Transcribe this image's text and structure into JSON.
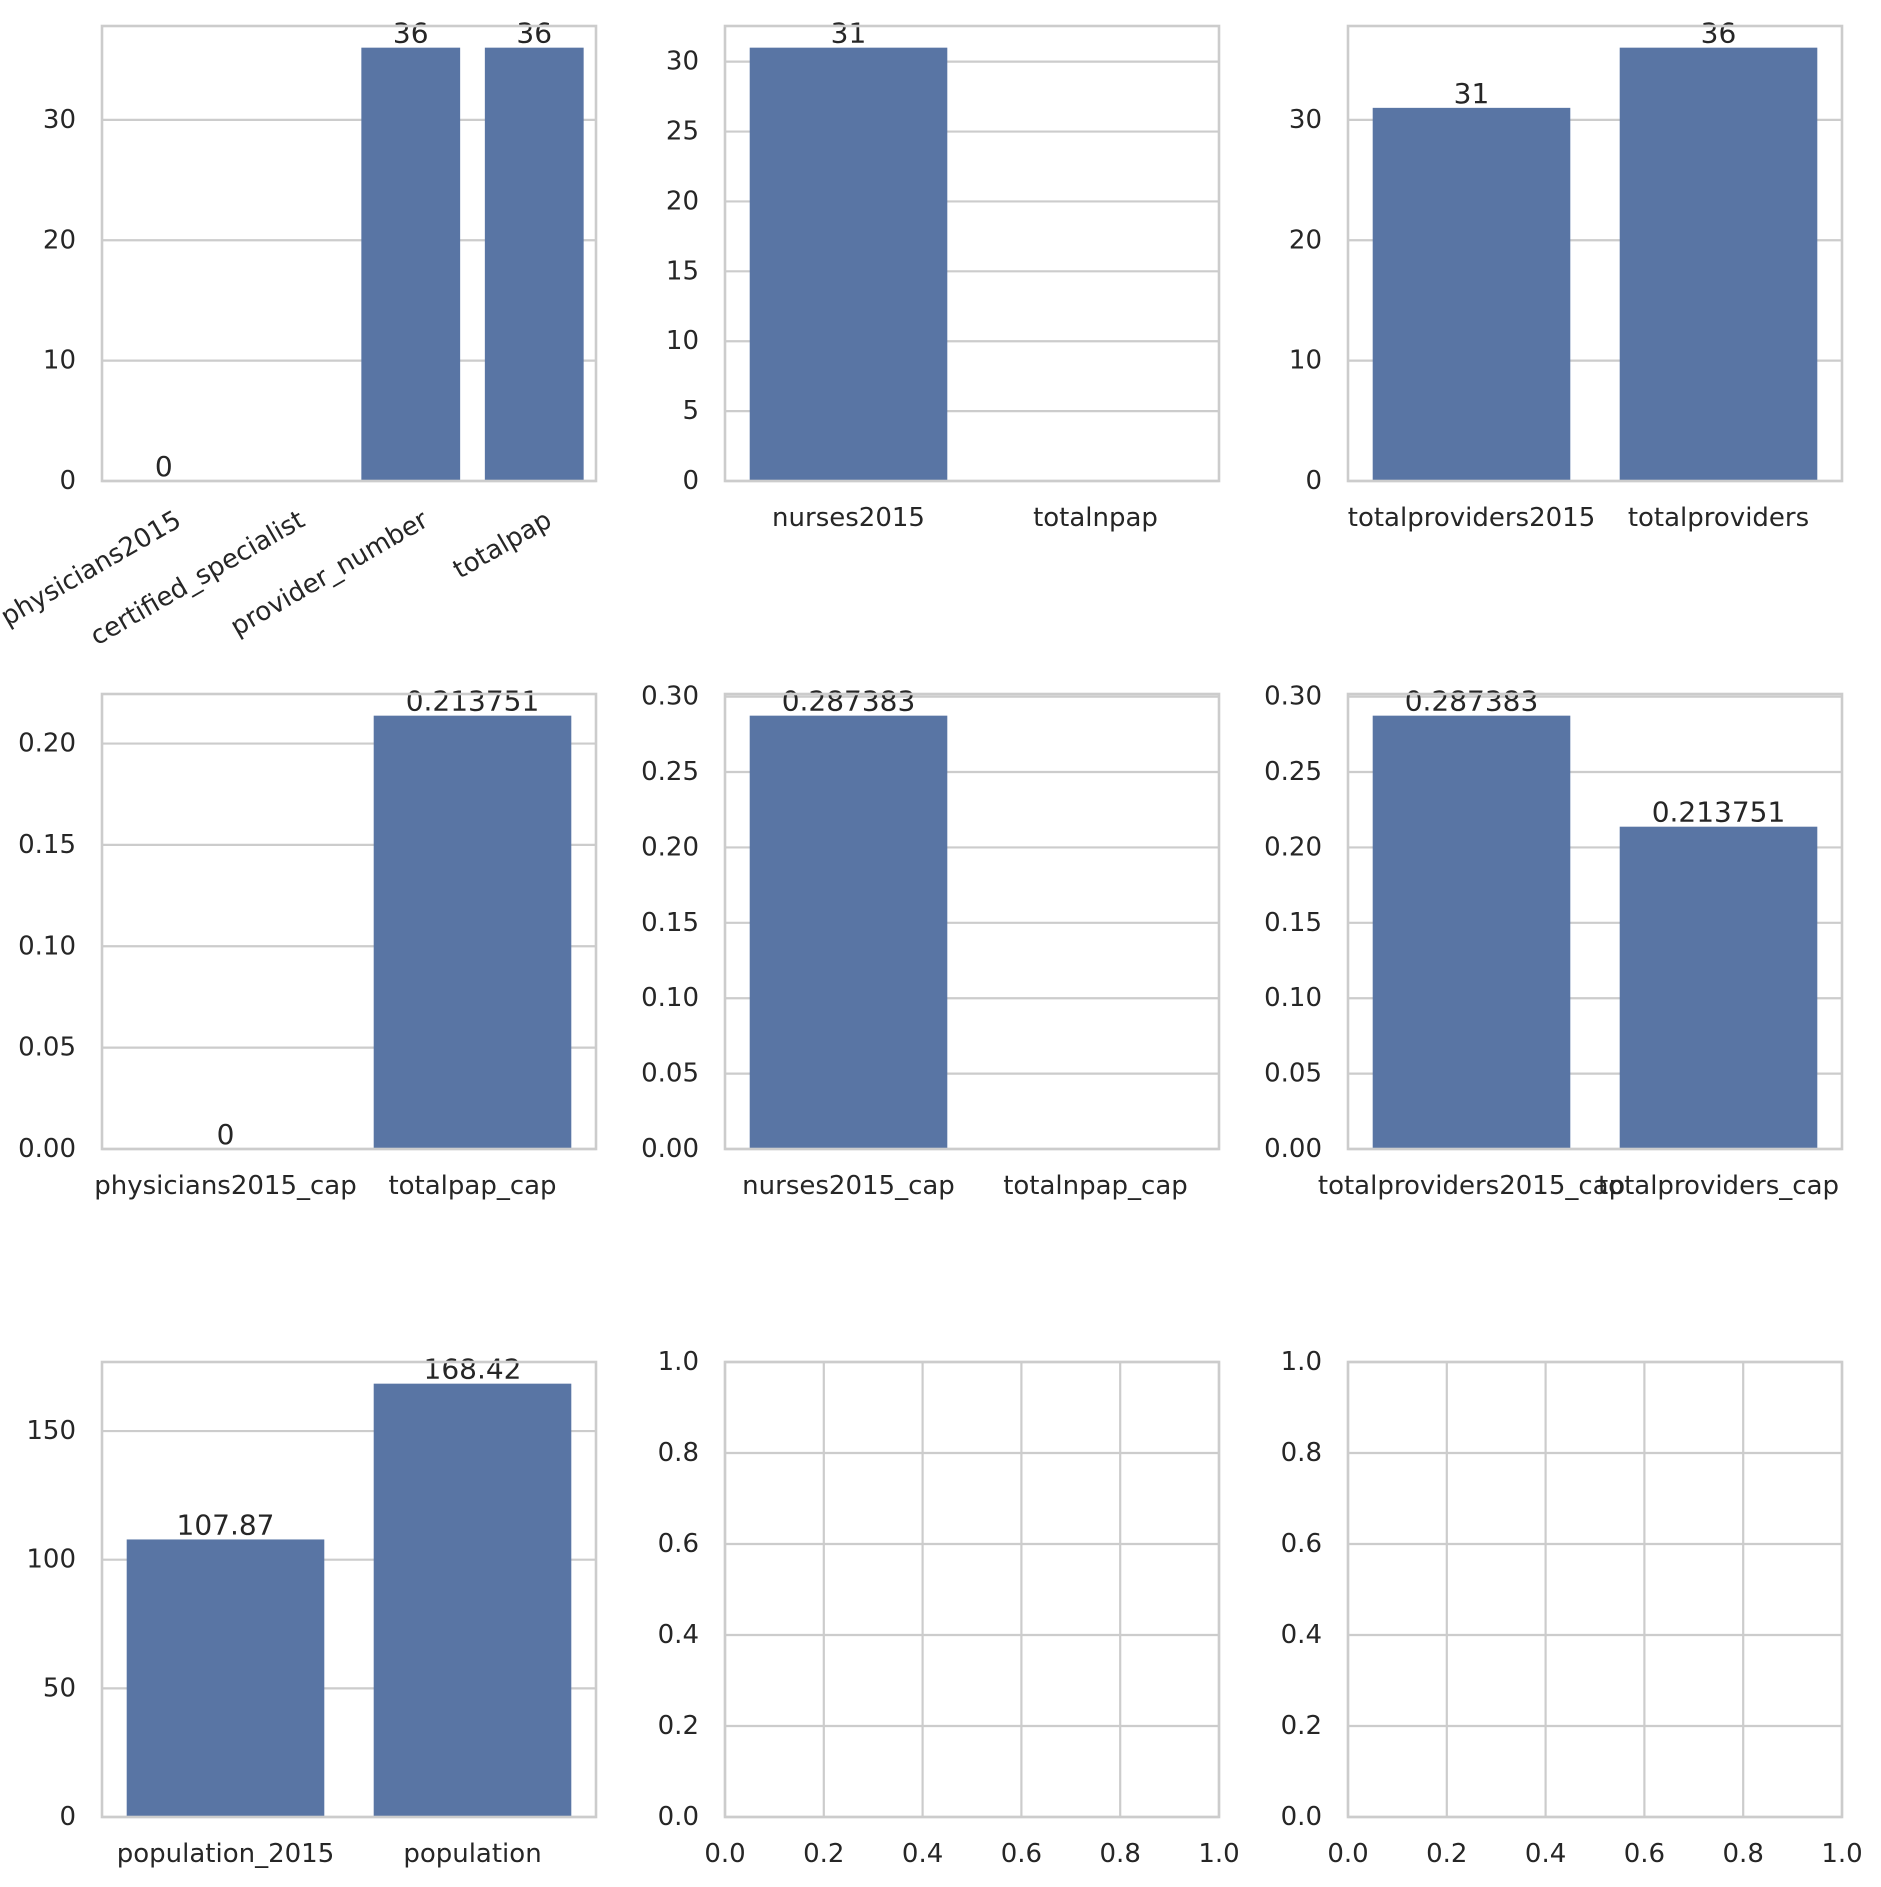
{
  "colors": {
    "bar": "#5975a4",
    "grid": "#cccccc",
    "text": "#262626",
    "background": "#ffffff"
  },
  "chart_data": [
    {
      "type": "bar",
      "title": "",
      "xlabel": "",
      "ylabel": "",
      "categories": [
        "physicians2015",
        "certified_specialist",
        "provider_number",
        "totalpap"
      ],
      "values": [
        0,
        0,
        36,
        36
      ],
      "data_labels": [
        "0",
        "",
        "36",
        "36"
      ],
      "ylim": [
        0,
        37.8
      ],
      "yticks": [
        0,
        10,
        20,
        30
      ],
      "grid": true,
      "xtick_rotation": 30
    },
    {
      "type": "bar",
      "title": "",
      "xlabel": "",
      "ylabel": "",
      "categories": [
        "nurses2015",
        "totalnpap"
      ],
      "values": [
        31,
        0
      ],
      "data_labels": [
        "31",
        ""
      ],
      "ylim": [
        0,
        32.55
      ],
      "yticks": [
        0,
        5,
        10,
        15,
        20,
        25,
        30
      ],
      "grid": true
    },
    {
      "type": "bar",
      "title": "",
      "xlabel": "",
      "ylabel": "",
      "categories": [
        "totalproviders2015",
        "totalproviders"
      ],
      "values": [
        31,
        36
      ],
      "data_labels": [
        "31",
        "36"
      ],
      "ylim": [
        0,
        37.8
      ],
      "yticks": [
        0,
        10,
        20,
        30
      ],
      "grid": true
    },
    {
      "type": "bar",
      "title": "",
      "xlabel": "",
      "ylabel": "",
      "categories": [
        "physicians2015_cap",
        "totalpap_cap"
      ],
      "values": [
        0,
        0.213751
      ],
      "data_labels": [
        "0",
        "0.213751"
      ],
      "ylim": [
        0,
        0.22444
      ],
      "yticks": [
        0.0,
        0.05,
        0.1,
        0.15,
        0.2
      ],
      "ytick_labels": [
        "0.00",
        "0.05",
        "0.10",
        "0.15",
        "0.20"
      ],
      "grid": true
    },
    {
      "type": "bar",
      "title": "",
      "xlabel": "",
      "ylabel": "",
      "categories": [
        "nurses2015_cap",
        "totalnpap_cap"
      ],
      "values": [
        0.287383,
        0
      ],
      "data_labels": [
        "0.287383",
        ""
      ],
      "ylim": [
        0,
        0.30175
      ],
      "yticks": [
        0.0,
        0.05,
        0.1,
        0.15,
        0.2,
        0.25,
        0.3
      ],
      "ytick_labels": [
        "0.00",
        "0.05",
        "0.10",
        "0.15",
        "0.20",
        "0.25",
        "0.30"
      ],
      "grid": true
    },
    {
      "type": "bar",
      "title": "",
      "xlabel": "",
      "ylabel": "",
      "categories": [
        "totalproviders2015_cap",
        "totalproviders_cap"
      ],
      "values": [
        0.287383,
        0.213751
      ],
      "data_labels": [
        "0.287383",
        "0.213751"
      ],
      "ylim": [
        0,
        0.30175
      ],
      "yticks": [
        0.0,
        0.05,
        0.1,
        0.15,
        0.2,
        0.25,
        0.3
      ],
      "ytick_labels": [
        "0.00",
        "0.05",
        "0.10",
        "0.15",
        "0.20",
        "0.25",
        "0.30"
      ],
      "grid": true
    },
    {
      "type": "bar",
      "title": "",
      "xlabel": "",
      "ylabel": "",
      "categories": [
        "population_2015",
        "population"
      ],
      "values": [
        107.87,
        168.42
      ],
      "data_labels": [
        "107.87",
        "168.42"
      ],
      "ylim": [
        0,
        176.84
      ],
      "yticks": [
        0,
        50,
        100,
        150
      ],
      "grid": true
    },
    {
      "type": "empty",
      "xlim": [
        0,
        1
      ],
      "ylim": [
        0,
        1
      ],
      "xticks": [
        0.0,
        0.2,
        0.4,
        0.6,
        0.8,
        1.0
      ],
      "yticks": [
        0.0,
        0.2,
        0.4,
        0.6,
        0.8,
        1.0
      ],
      "xtick_labels": [
        "0.0",
        "0.2",
        "0.4",
        "0.6",
        "0.8",
        "1.0"
      ],
      "ytick_labels": [
        "0.0",
        "0.2",
        "0.4",
        "0.6",
        "0.8",
        "1.0"
      ],
      "grid": true
    },
    {
      "type": "empty",
      "xlim": [
        0,
        1
      ],
      "ylim": [
        0,
        1
      ],
      "xticks": [
        0.0,
        0.2,
        0.4,
        0.6,
        0.8,
        1.0
      ],
      "yticks": [
        0.0,
        0.2,
        0.4,
        0.6,
        0.8,
        1.0
      ],
      "xtick_labels": [
        "0.0",
        "0.2",
        "0.4",
        "0.6",
        "0.8",
        "1.0"
      ],
      "ytick_labels": [
        "0.0",
        "0.2",
        "0.4",
        "0.6",
        "0.8",
        "1.0"
      ],
      "grid": true
    }
  ]
}
